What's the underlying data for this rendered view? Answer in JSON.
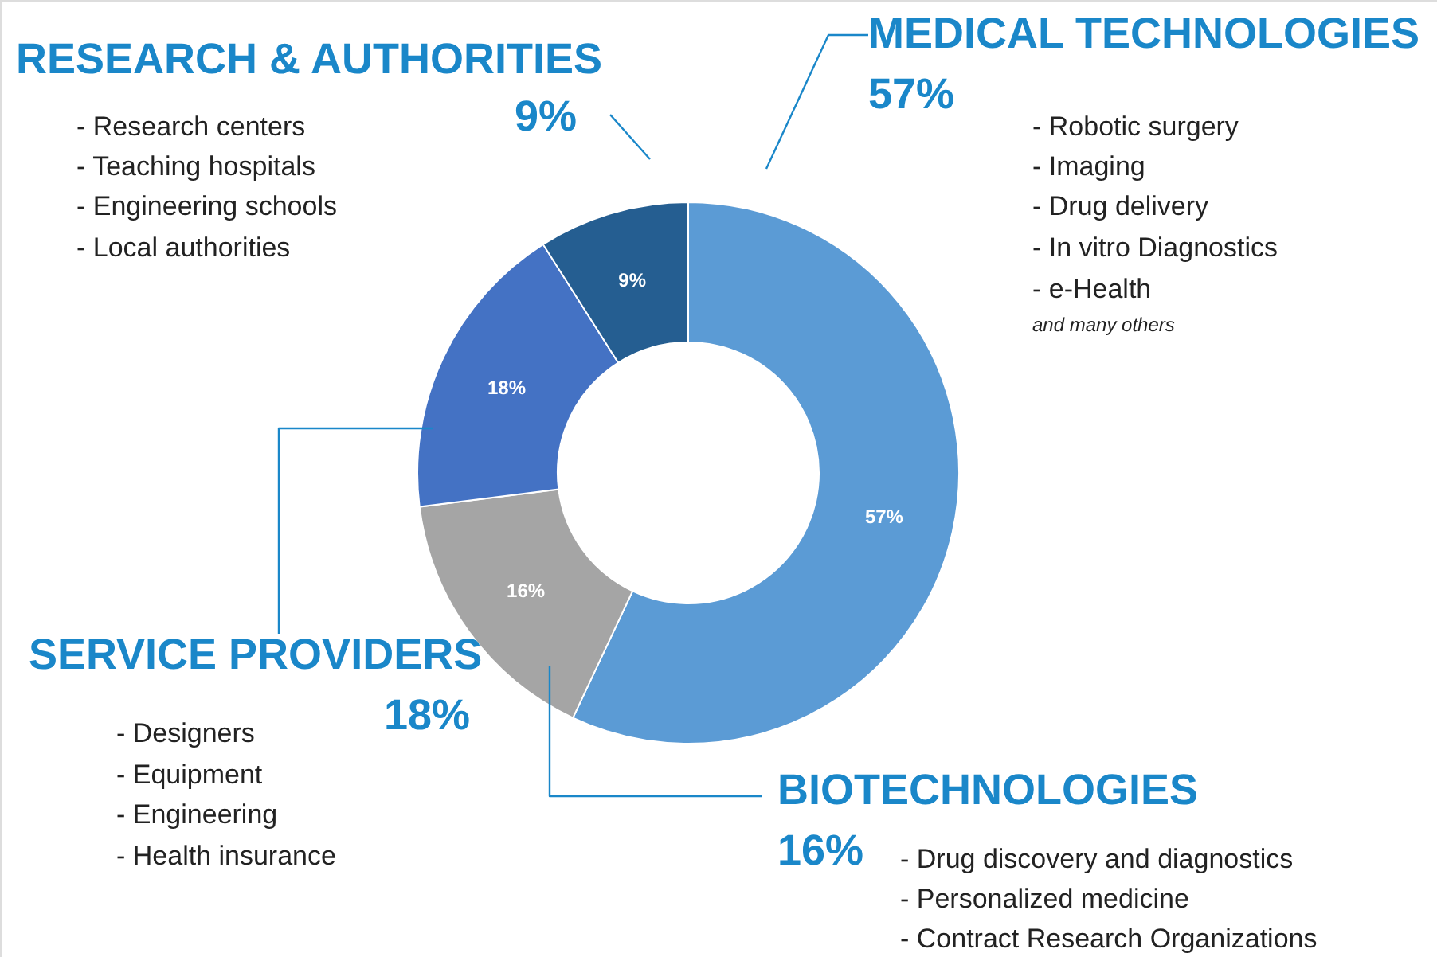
{
  "chart_data": {
    "type": "donut",
    "categories": [
      "MEDICAL TECHNOLOGIES",
      "BIOTECHNOLOGIES",
      "SERVICE PROVIDERS",
      "RESEARCH & AUTHORITIES"
    ],
    "values": [
      57,
      16,
      18,
      9
    ],
    "colors": [
      "#5b9bd5",
      "#a5a5a5",
      "#4472c4",
      "#255e91"
    ],
    "value_labels": [
      "57%",
      "16%",
      "18%",
      "9%"
    ],
    "annotations": [
      "- Robotic surgery",
      "- Imaging",
      "- Drug delivery",
      "- In vitro Diagnostics",
      "- e-Health",
      "and many others",
      "- Drug discovery and diagnostics",
      "- Personalized medicine",
      "- Contract Research Organizations",
      "- Designers",
      "- Equipment",
      "- Engineering",
      "- Health insurance",
      "- Research centers",
      "- Teaching hospitals",
      "- Engineering schools",
      "- Local authorities"
    ]
  }
}
